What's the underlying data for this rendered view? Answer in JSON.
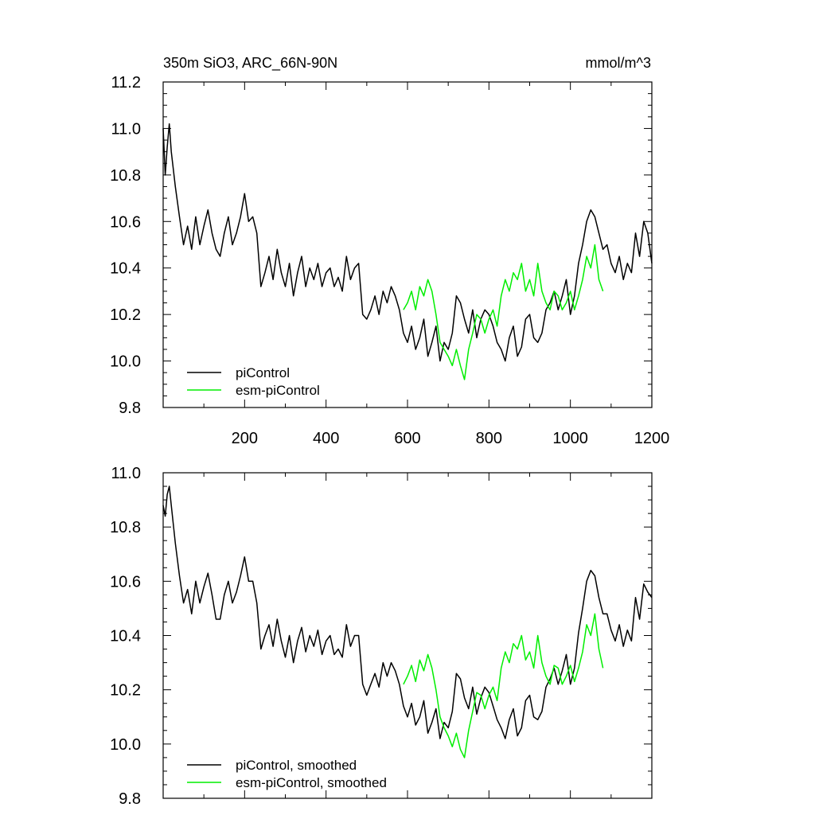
{
  "chart_data": [
    {
      "type": "line",
      "title": "350m SiO3, ARC_66N-90N",
      "units": "mmol/m^3",
      "xlabel": "",
      "ylabel": "",
      "xlim": [
        0,
        1200
      ],
      "ylim": [
        9.8,
        11.2
      ],
      "x_ticks": [
        200,
        400,
        600,
        800,
        1000,
        1200
      ],
      "x_tick_labels": [
        "200",
        "400",
        "600",
        "800",
        "1000",
        "1200"
      ],
      "y_ticks": [
        9.8,
        10.0,
        10.2,
        10.4,
        10.6,
        10.8,
        11.0,
        11.2
      ],
      "y_tick_labels": [
        "9.8",
        "10.0",
        "10.2",
        "10.4",
        "10.6",
        "10.8",
        "11.0",
        "11.2"
      ],
      "grid": false,
      "legend": "bottom-left",
      "series": [
        {
          "name": "piControl",
          "color": "#000000",
          "x": [
            0,
            5,
            10,
            15,
            20,
            30,
            40,
            50,
            60,
            70,
            80,
            90,
            100,
            110,
            120,
            130,
            140,
            150,
            160,
            170,
            180,
            190,
            200,
            210,
            220,
            230,
            240,
            250,
            260,
            270,
            280,
            290,
            300,
            310,
            320,
            330,
            340,
            350,
            360,
            370,
            380,
            390,
            400,
            410,
            420,
            430,
            440,
            450,
            460,
            470,
            480,
            490,
            500,
            510,
            520,
            530,
            540,
            550,
            560,
            570,
            580,
            590,
            600,
            610,
            620,
            630,
            640,
            650,
            660,
            670,
            680,
            690,
            700,
            710,
            720,
            730,
            740,
            750,
            760,
            770,
            780,
            790,
            800,
            810,
            820,
            830,
            840,
            850,
            860,
            870,
            880,
            890,
            900,
            910,
            920,
            930,
            940,
            950,
            960,
            970,
            980,
            990,
            1000,
            1010,
            1020,
            1030,
            1040,
            1050,
            1060,
            1070,
            1080,
            1090,
            1100,
            1110,
            1120,
            1130,
            1140,
            1150,
            1160,
            1170,
            1180,
            1190,
            1200
          ],
          "values": [
            11.0,
            10.8,
            10.92,
            11.02,
            10.9,
            10.75,
            10.62,
            10.5,
            10.58,
            10.48,
            10.62,
            10.5,
            10.58,
            10.65,
            10.55,
            10.48,
            10.45,
            10.55,
            10.62,
            10.5,
            10.55,
            10.62,
            10.72,
            10.6,
            10.62,
            10.55,
            10.32,
            10.38,
            10.45,
            10.35,
            10.48,
            10.38,
            10.32,
            10.42,
            10.28,
            10.38,
            10.45,
            10.32,
            10.4,
            10.35,
            10.42,
            10.32,
            10.38,
            10.4,
            10.32,
            10.36,
            10.3,
            10.45,
            10.35,
            10.4,
            10.42,
            10.2,
            10.18,
            10.22,
            10.28,
            10.2,
            10.3,
            10.25,
            10.32,
            10.28,
            10.22,
            10.12,
            10.08,
            10.15,
            10.05,
            10.1,
            10.18,
            10.02,
            10.08,
            10.15,
            10.0,
            10.08,
            10.05,
            10.12,
            10.28,
            10.25,
            10.18,
            10.12,
            10.22,
            10.1,
            10.18,
            10.22,
            10.2,
            10.15,
            10.08,
            10.05,
            10.0,
            10.1,
            10.15,
            10.02,
            10.06,
            10.18,
            10.2,
            10.1,
            10.08,
            10.12,
            10.22,
            10.25,
            10.3,
            10.22,
            10.28,
            10.35,
            10.2,
            10.28,
            10.42,
            10.5,
            10.6,
            10.65,
            10.62,
            10.55,
            10.48,
            10.5,
            10.42,
            10.38,
            10.45,
            10.35,
            10.42,
            10.38,
            10.55,
            10.45,
            10.6,
            10.55,
            10.42
          ]
        },
        {
          "name": "esm-piControl",
          "color": "#00ee00",
          "x": [
            590,
            600,
            610,
            620,
            630,
            640,
            650,
            660,
            670,
            680,
            690,
            700,
            710,
            720,
            730,
            740,
            750,
            760,
            770,
            780,
            790,
            800,
            810,
            820,
            830,
            840,
            850,
            860,
            870,
            880,
            890,
            900,
            910,
            920,
            930,
            940,
            950,
            960,
            970,
            980,
            990,
            1000,
            1010,
            1020,
            1030,
            1040,
            1050,
            1060,
            1070,
            1080
          ],
          "values": [
            10.22,
            10.25,
            10.3,
            10.22,
            10.32,
            10.28,
            10.35,
            10.3,
            10.2,
            10.08,
            10.05,
            10.02,
            9.98,
            10.05,
            9.98,
            9.92,
            10.05,
            10.12,
            10.2,
            10.18,
            10.12,
            10.18,
            10.22,
            10.15,
            10.28,
            10.35,
            10.3,
            10.38,
            10.35,
            10.42,
            10.3,
            10.35,
            10.28,
            10.42,
            10.3,
            10.25,
            10.22,
            10.3,
            10.28,
            10.22,
            10.25,
            10.3,
            10.22,
            10.28,
            10.35,
            10.45,
            10.4,
            10.5,
            10.35,
            10.3
          ]
        }
      ]
    },
    {
      "type": "line",
      "title": "",
      "xlabel": "",
      "ylabel": "",
      "xlim": [
        0,
        1200
      ],
      "ylim": [
        9.8,
        11.0
      ],
      "y_ticks": [
        9.8,
        10.0,
        10.2,
        10.4,
        10.6,
        10.8,
        11.0
      ],
      "y_tick_labels": [
        "9.8",
        "10.0",
        "10.2",
        "10.4",
        "10.6",
        "10.8",
        "11.0"
      ],
      "grid": false,
      "legend": "bottom-left",
      "series": [
        {
          "name": "piControl, smoothed",
          "color": "#000000",
          "x": [
            0,
            5,
            10,
            15,
            20,
            30,
            40,
            50,
            60,
            70,
            80,
            90,
            100,
            110,
            120,
            130,
            140,
            150,
            160,
            170,
            180,
            190,
            200,
            210,
            220,
            230,
            240,
            250,
            260,
            270,
            280,
            290,
            300,
            310,
            320,
            330,
            340,
            350,
            360,
            370,
            380,
            390,
            400,
            410,
            420,
            430,
            440,
            450,
            460,
            470,
            480,
            490,
            500,
            510,
            520,
            530,
            540,
            550,
            560,
            570,
            580,
            590,
            600,
            610,
            620,
            630,
            640,
            650,
            660,
            670,
            680,
            690,
            700,
            710,
            720,
            730,
            740,
            750,
            760,
            770,
            780,
            790,
            800,
            810,
            820,
            830,
            840,
            850,
            860,
            870,
            880,
            890,
            900,
            910,
            920,
            930,
            940,
            950,
            960,
            970,
            980,
            990,
            1000,
            1010,
            1020,
            1030,
            1040,
            1050,
            1060,
            1070,
            1080,
            1090,
            1100,
            1110,
            1120,
            1130,
            1140,
            1150,
            1160,
            1170,
            1180,
            1190,
            1200
          ],
          "values": [
            10.88,
            10.84,
            10.92,
            10.95,
            10.88,
            10.74,
            10.62,
            10.52,
            10.57,
            10.48,
            10.6,
            10.52,
            10.58,
            10.63,
            10.55,
            10.46,
            10.46,
            10.55,
            10.6,
            10.52,
            10.56,
            10.62,
            10.69,
            10.6,
            10.6,
            10.52,
            10.35,
            10.4,
            10.44,
            10.36,
            10.46,
            10.38,
            10.32,
            10.4,
            10.3,
            10.38,
            10.43,
            10.34,
            10.4,
            10.36,
            10.42,
            10.33,
            10.38,
            10.4,
            10.33,
            10.35,
            10.32,
            10.44,
            10.36,
            10.4,
            10.4,
            10.22,
            10.18,
            10.22,
            10.26,
            10.21,
            10.3,
            10.25,
            10.3,
            10.27,
            10.22,
            10.14,
            10.1,
            10.15,
            10.07,
            10.1,
            10.16,
            10.04,
            10.08,
            10.13,
            10.02,
            10.08,
            10.06,
            10.12,
            10.26,
            10.24,
            10.17,
            10.13,
            10.21,
            10.11,
            10.17,
            10.21,
            10.19,
            10.14,
            10.09,
            10.06,
            10.02,
            10.09,
            10.13,
            10.03,
            10.06,
            10.16,
            10.18,
            10.1,
            10.09,
            10.12,
            10.21,
            10.24,
            10.28,
            10.22,
            10.27,
            10.33,
            10.22,
            10.28,
            10.41,
            10.5,
            10.6,
            10.64,
            10.62,
            10.54,
            10.48,
            10.48,
            10.42,
            10.38,
            10.44,
            10.36,
            10.42,
            10.38,
            10.54,
            10.46,
            10.59,
            10.56,
            10.54
          ]
        },
        {
          "name": "esm-piControl, smoothed",
          "color": "#00ee00",
          "x": [
            590,
            600,
            610,
            620,
            630,
            640,
            650,
            660,
            670,
            680,
            690,
            700,
            710,
            720,
            730,
            740,
            750,
            760,
            770,
            780,
            790,
            800,
            810,
            820,
            830,
            840,
            850,
            860,
            870,
            880,
            890,
            900,
            910,
            920,
            930,
            940,
            950,
            960,
            970,
            980,
            990,
            1000,
            1010,
            1020,
            1030,
            1040,
            1050,
            1060,
            1070,
            1080
          ],
          "values": [
            10.22,
            10.25,
            10.29,
            10.23,
            10.31,
            10.27,
            10.33,
            10.28,
            10.2,
            10.1,
            10.06,
            10.03,
            9.99,
            10.04,
            9.98,
            9.95,
            10.05,
            10.12,
            10.19,
            10.18,
            10.13,
            10.18,
            10.21,
            10.16,
            10.28,
            10.34,
            10.3,
            10.37,
            10.35,
            10.4,
            10.31,
            10.34,
            10.28,
            10.4,
            10.3,
            10.25,
            10.22,
            10.29,
            10.28,
            10.22,
            10.25,
            10.29,
            10.23,
            10.28,
            10.34,
            10.44,
            10.4,
            10.48,
            10.35,
            10.28
          ]
        }
      ]
    }
  ]
}
